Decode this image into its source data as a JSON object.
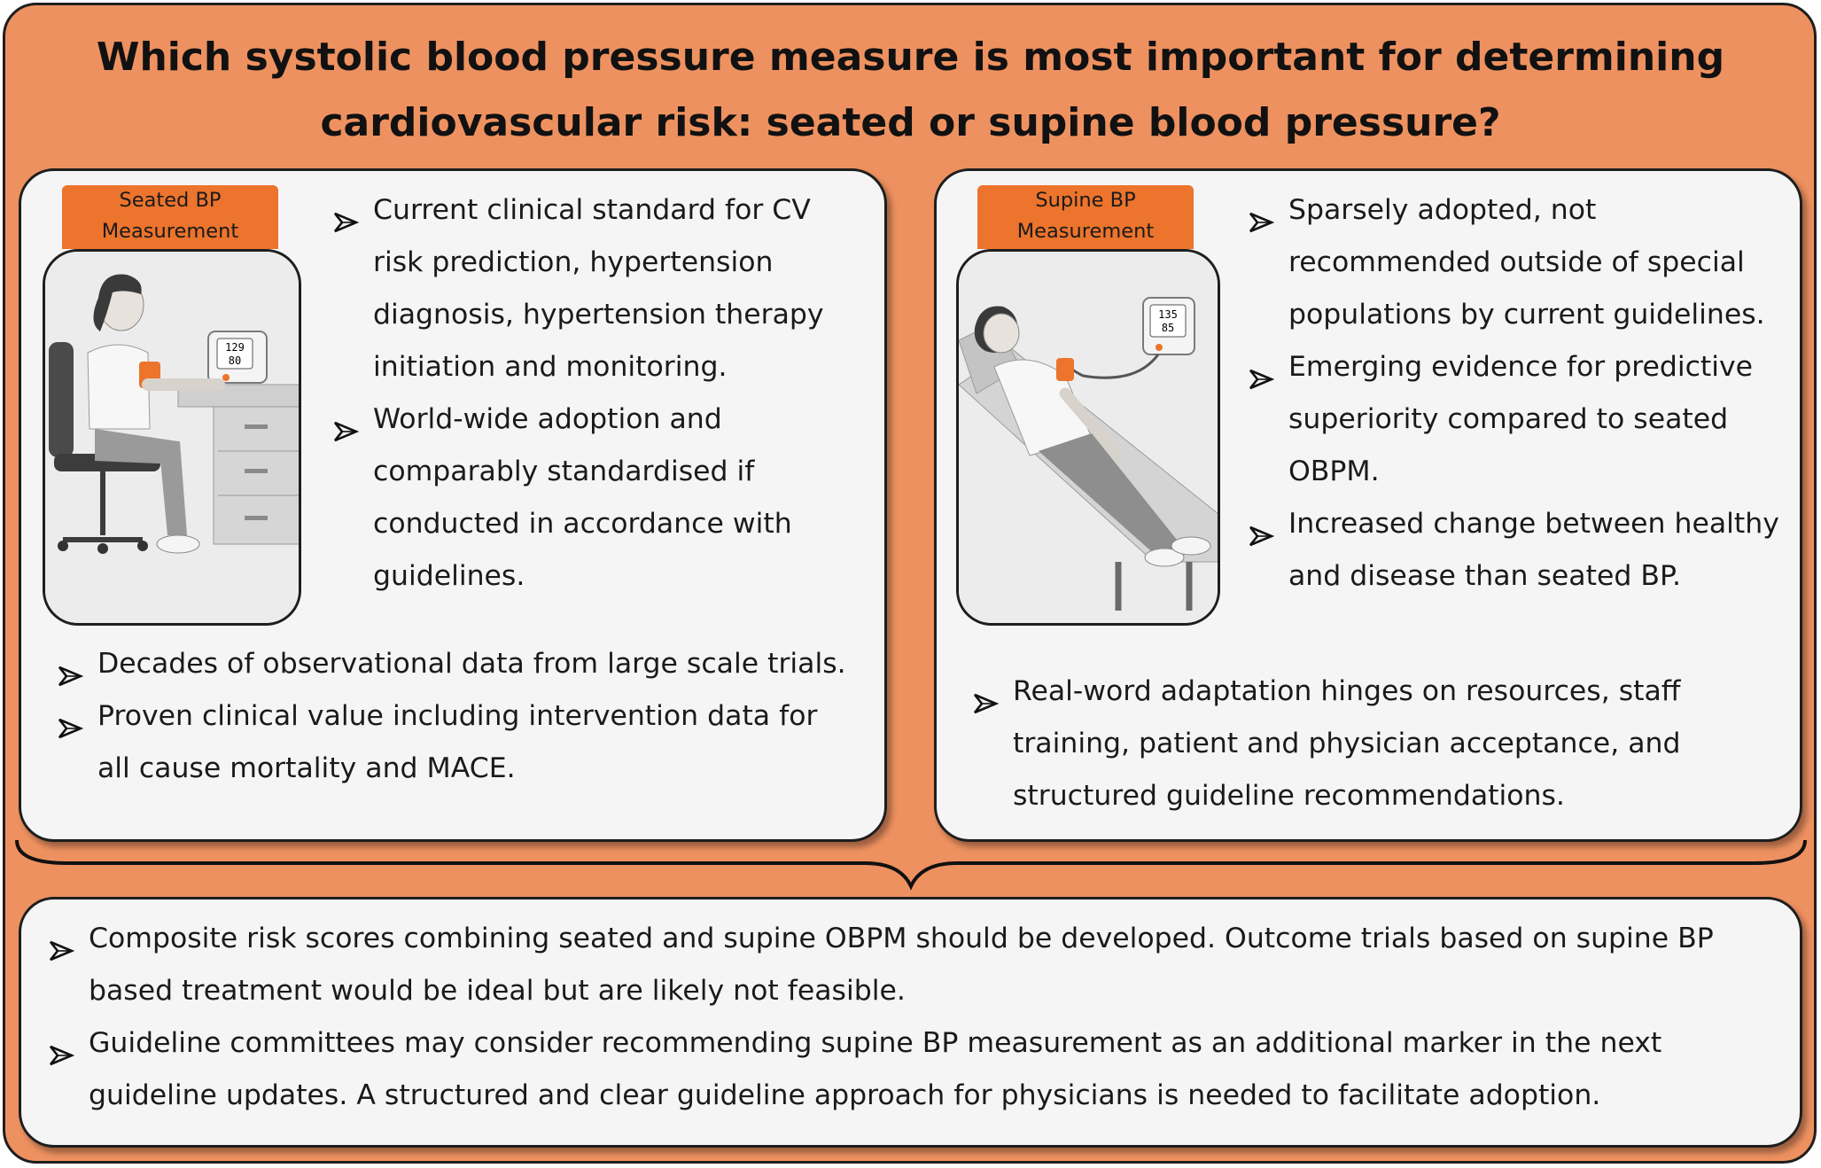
{
  "title": "Which systolic blood pressure measure is most important for determining cardiovascular risk: seated or supine blood pressure?",
  "seated": {
    "tag_line1": "Seated BP",
    "tag_line2": "Measurement",
    "monitor_sys": "129",
    "monitor_dia": "80",
    "bullets_top": [
      "Current clinical standard for CV risk prediction, hypertension diagnosis, hypertension therapy initiation and monitoring.",
      "World-wide adoption and comparably standardised if conducted in accordance with guidelines."
    ],
    "bullets_bottom": [
      "Decades of observational data from large scale trials.",
      "Proven clinical value including intervention data for all cause mortality and MACE."
    ]
  },
  "supine": {
    "tag_line1": "Supine BP",
    "tag_line2": "Measurement",
    "monitor_sys": "135",
    "monitor_dia": "85",
    "bullets_top": [
      "Sparsely adopted, not recommended outside of special populations by current guidelines.",
      "Emerging evidence for predictive superiority compared to seated OBPM.",
      "Increased change between healthy and disease than seated BP."
    ],
    "bullets_bottom": [
      "Real-word adaptation hinges on resources, staff training, patient and physician acceptance, and structured guideline recommendations."
    ]
  },
  "conclusion": {
    "bullets": [
      "Composite risk scores combining seated and supine OBPM should be developed. Outcome trials based on supine BP based treatment would be ideal but are likely not feasible.",
      "Guideline committees may consider recommending supine BP measurement as an additional marker in the next guideline updates. A structured and clear guideline approach for physicians is needed to facilitate adoption."
    ]
  },
  "colors": {
    "background": "#ee9160",
    "panel": "#f5f5f6",
    "tag": "#ec742c",
    "border": "#1e1e1e"
  }
}
